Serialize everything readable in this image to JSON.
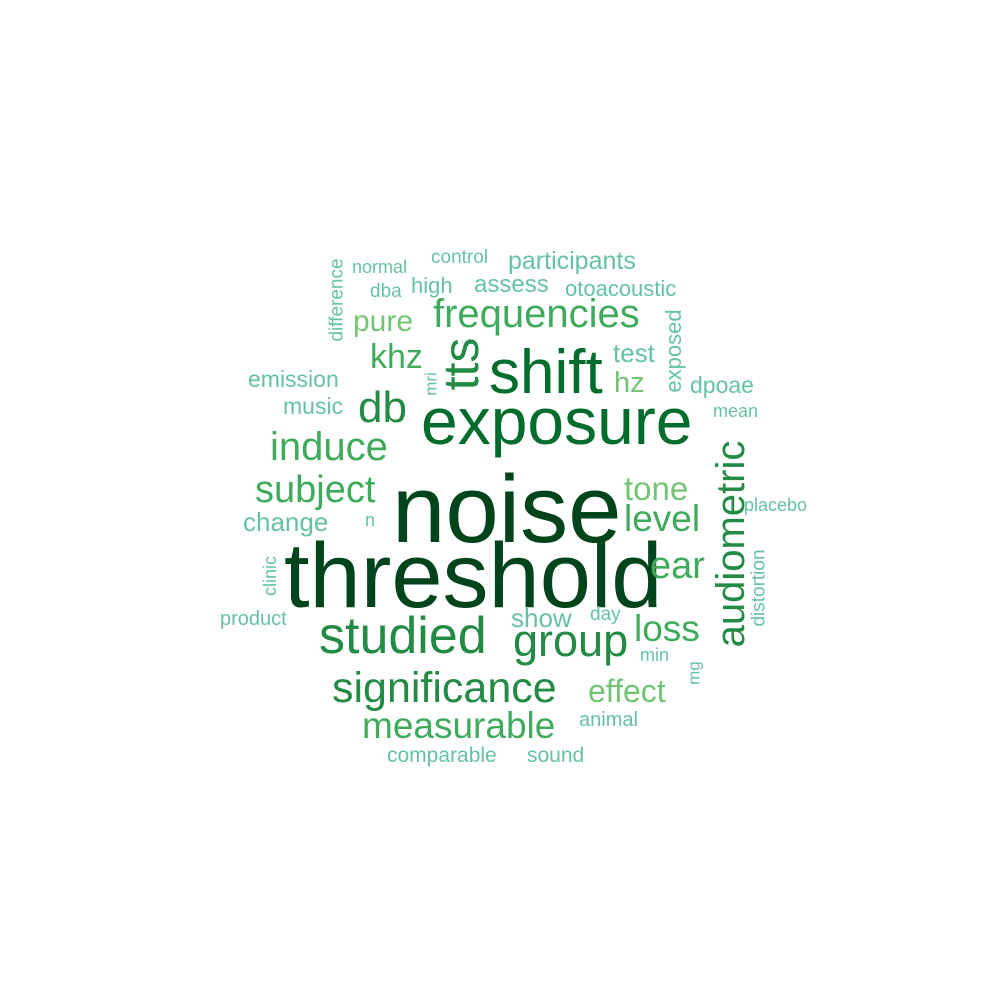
{
  "words": {
    "noise": "noise",
    "threshold": "threshold",
    "exposure": "exposure",
    "shift": "shift",
    "studied": "studied",
    "tts": "tts",
    "significance": "significance",
    "group": "group",
    "db": "db",
    "frequencies": "frequencies",
    "induce": "induce",
    "subject": "subject",
    "measurable": "measurable",
    "audiometric": "audiometric",
    "level": "level",
    "loss": "loss",
    "ear": "ear",
    "khz": "khz",
    "tone": "tone",
    "effect": "effect",
    "pure": "pure",
    "participants": "participants",
    "change": "change",
    "hz": "hz",
    "test": "test",
    "show": "show",
    "assess": "assess",
    "otoacoustic": "otoacoustic",
    "emission": "emission",
    "dpoae": "dpoae",
    "music": "music",
    "exposed": "exposed",
    "high": "high",
    "control": "control",
    "dba": "dba",
    "normal": "normal",
    "difference": "difference",
    "mri": "mri",
    "mean": "mean",
    "placebo": "placebo",
    "n": "n",
    "clinic": "clinic",
    "product": "product",
    "day": "day",
    "min": "min",
    "mg": "mg",
    "distortion": "distortion",
    "animal": "animal",
    "comparable": "comparable",
    "sound": "sound"
  },
  "palette": {
    "darkest": "#00441b",
    "dark": "#006d2c",
    "medium": "#238b45",
    "mid_light": "#41ab5d",
    "light": "#74c476",
    "lightest": "#66c2a4",
    "background": "#ffffff"
  }
}
